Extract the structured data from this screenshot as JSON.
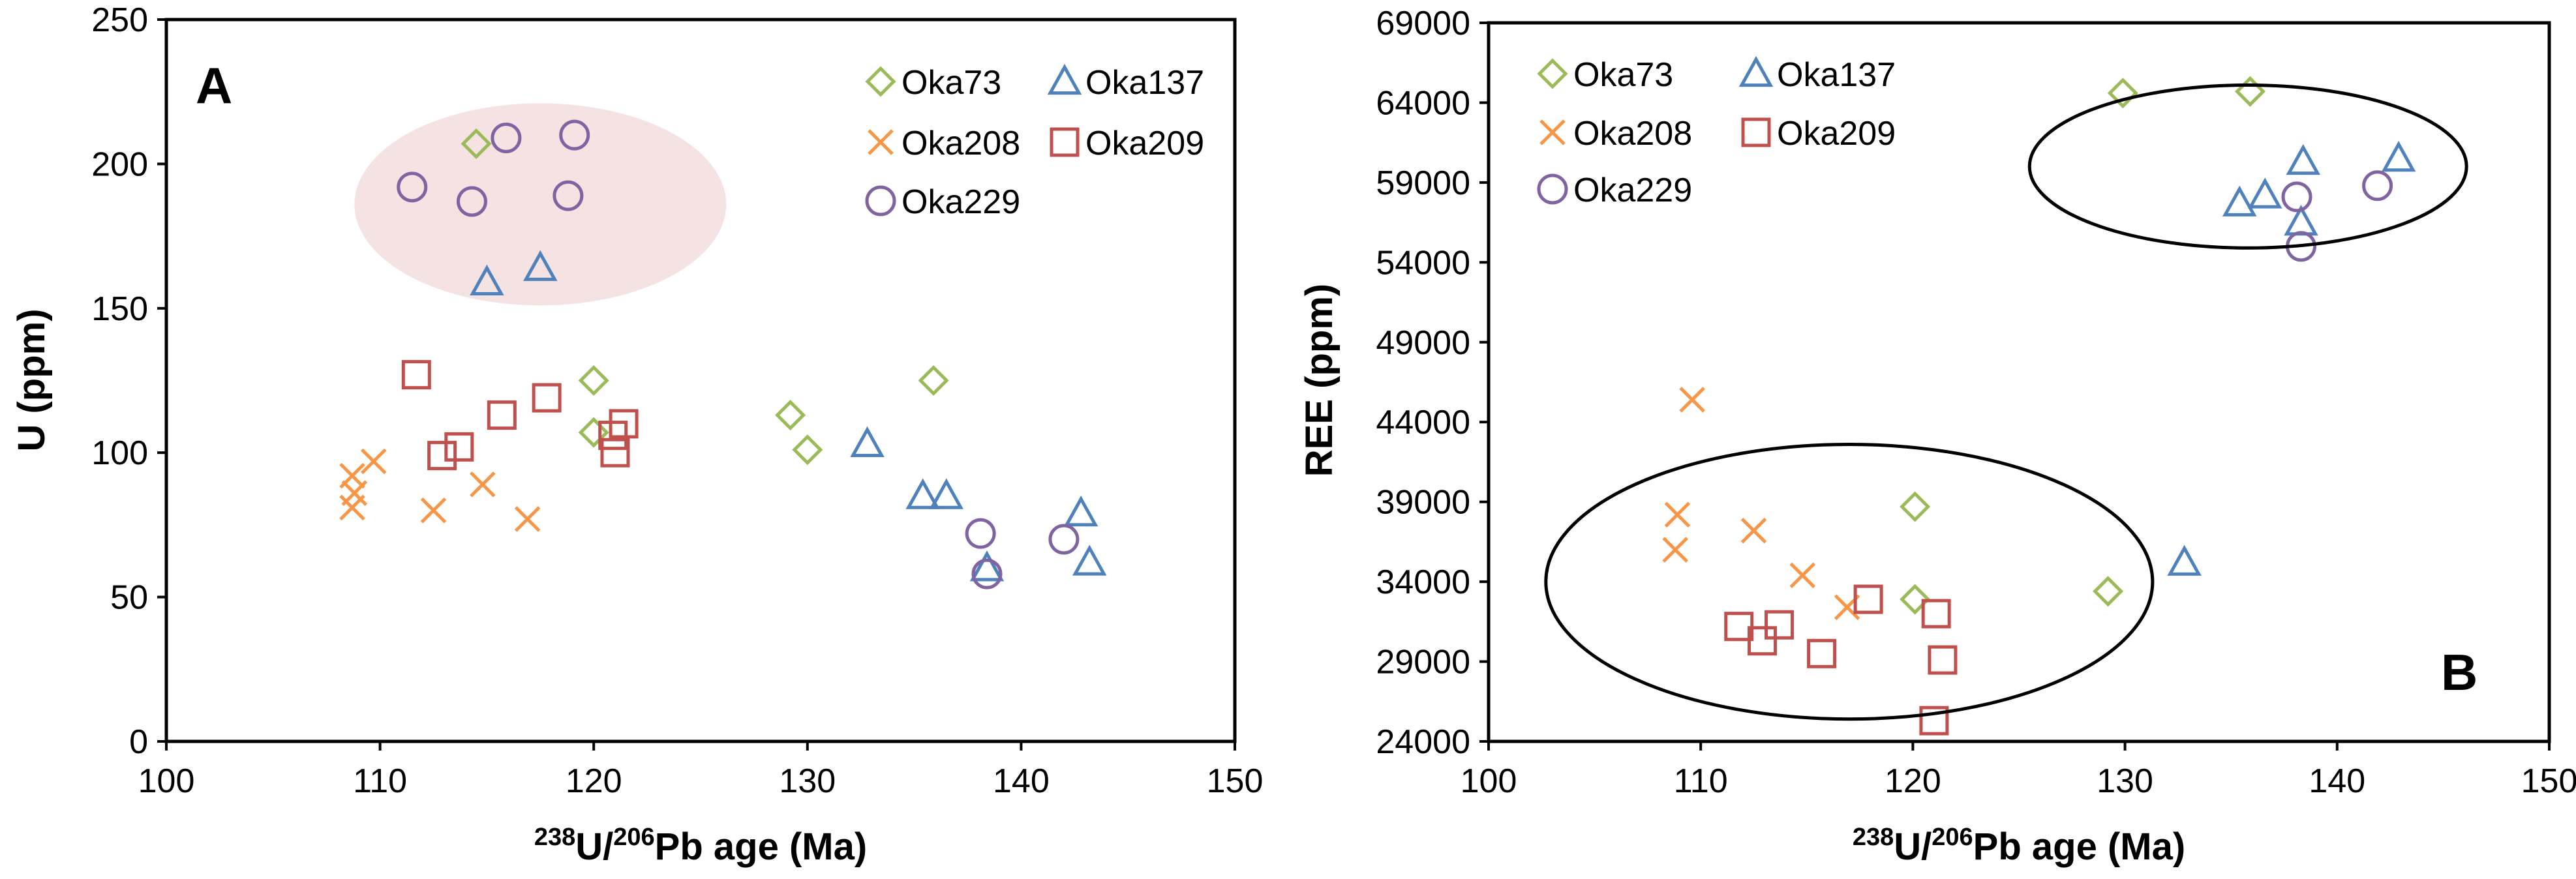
{
  "chart_data": [
    {
      "type": "scatter",
      "panel_label": "A",
      "xlabel": {
        "sup1": "238",
        "mid": "U/",
        "sup2": "206",
        "rest": "Pb age (Ma)"
      },
      "ylabel": "U (ppm)",
      "xlim": [
        100,
        150
      ],
      "ylim": [
        0,
        250
      ],
      "xticks": [
        100,
        110,
        120,
        130,
        140,
        150
      ],
      "yticks": [
        0,
        50,
        100,
        150,
        200,
        250
      ],
      "highlight_ellipse": {
        "cx": 117.5,
        "cy": 186,
        "rx": 8.7,
        "ry": 35,
        "color": "#f5e3e3"
      },
      "legend_placement": "top-right",
      "series": [
        {
          "name": "Oka73",
          "marker": "diamond",
          "color": "#9bbb59",
          "points": [
            [
              114.5,
              207
            ],
            [
              120,
              125
            ],
            [
              120,
              107
            ],
            [
              129.2,
              113
            ],
            [
              130,
              101
            ],
            [
              135.9,
              125
            ]
          ]
        },
        {
          "name": "Oka137",
          "marker": "triangle",
          "color": "#4f81bd",
          "points": [
            [
              115,
              159
            ],
            [
              117.5,
              164
            ],
            [
              132.8,
              103
            ],
            [
              135.4,
              85
            ],
            [
              136.5,
              85
            ],
            [
              138.4,
              60
            ],
            [
              142.8,
              79
            ],
            [
              143.2,
              62
            ]
          ]
        },
        {
          "name": "Oka208",
          "marker": "x",
          "color": "#f79646",
          "points": [
            [
              108.7,
              92
            ],
            [
              109.7,
              97
            ],
            [
              108.8,
              86
            ],
            [
              108.7,
              81
            ],
            [
              112.5,
              80
            ],
            [
              114.8,
              89
            ],
            [
              116.9,
              77
            ]
          ]
        },
        {
          "name": "Oka209",
          "marker": "square",
          "color": "#c0504d",
          "points": [
            [
              111.7,
              127
            ],
            [
              112.9,
              99
            ],
            [
              113.7,
              102
            ],
            [
              115.7,
              113
            ],
            [
              117.8,
              119
            ],
            [
              120.9,
              106
            ],
            [
              121.4,
              110
            ],
            [
              121,
              100
            ]
          ]
        },
        {
          "name": "Oka229",
          "marker": "circle",
          "color": "#8064a2",
          "points": [
            [
              111.5,
              192
            ],
            [
              114.3,
              187
            ],
            [
              115.9,
              209
            ],
            [
              118.8,
              189
            ],
            [
              119.1,
              210
            ],
            [
              138.1,
              72
            ],
            [
              138.4,
              58
            ],
            [
              142,
              70
            ]
          ]
        }
      ]
    },
    {
      "type": "scatter",
      "panel_label": "B",
      "xlabel": {
        "sup1": "238",
        "mid": "U/",
        "sup2": "206",
        "rest": "Pb age (Ma)"
      },
      "ylabel": "REE (ppm)",
      "xlim": [
        100,
        150
      ],
      "ylim": [
        24000,
        69000
      ],
      "xticks": [
        100,
        110,
        120,
        130,
        140,
        150
      ],
      "yticks": [
        24000,
        29000,
        34000,
        39000,
        44000,
        49000,
        54000,
        59000,
        64000,
        69000
      ],
      "ellipses": [
        {
          "cx": 117,
          "cy": 34000,
          "rx": 14.3,
          "ry": 8600
        },
        {
          "cx": 135.8,
          "cy": 60000,
          "rx": 10.3,
          "ry": 5100
        }
      ],
      "legend_placement": "top-left",
      "series": [
        {
          "name": "Oka73",
          "marker": "diamond",
          "color": "#9bbb59",
          "points": [
            [
              120.1,
              38700
            ],
            [
              120.1,
              32900
            ],
            [
              129.2,
              33400
            ],
            [
              129.9,
              64600
            ],
            [
              135.9,
              64700
            ]
          ]
        },
        {
          "name": "Oka137",
          "marker": "triangle",
          "color": "#4f81bd",
          "points": [
            [
              132.8,
              35200
            ],
            [
              135.4,
              57700
            ],
            [
              136.6,
              58200
            ],
            [
              138.4,
              60300
            ],
            [
              138.3,
              56500
            ],
            [
              142.9,
              60500
            ]
          ]
        },
        {
          "name": "Oka208",
          "marker": "x",
          "color": "#f79646",
          "points": [
            [
              108.9,
              38200
            ],
            [
              109.6,
              45400
            ],
            [
              108.8,
              36000
            ],
            [
              112.5,
              37200
            ],
            [
              114.8,
              34400
            ],
            [
              116.9,
              32400
            ]
          ]
        },
        {
          "name": "Oka209",
          "marker": "square",
          "color": "#c0504d",
          "points": [
            [
              111.8,
              31200
            ],
            [
              112.9,
              30300
            ],
            [
              113.7,
              31300
            ],
            [
              115.7,
              29500
            ],
            [
              117.9,
              32900
            ],
            [
              121.1,
              32000
            ],
            [
              121.4,
              29100
            ],
            [
              121,
              25300
            ]
          ]
        },
        {
          "name": "Oka229",
          "marker": "circle",
          "color": "#8064a2",
          "points": [
            [
              138.1,
              58100
            ],
            [
              138.3,
              55000
            ],
            [
              141.9,
              58800
            ]
          ]
        }
      ]
    }
  ]
}
